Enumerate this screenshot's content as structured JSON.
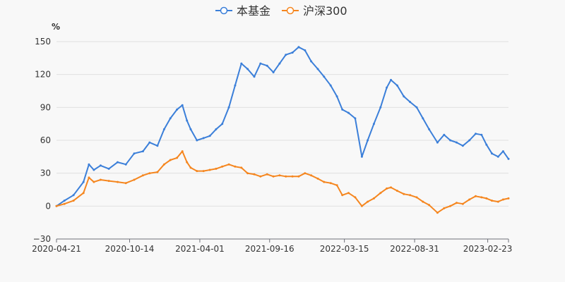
{
  "chart_data": {
    "type": "line",
    "title": "",
    "ylabel": "%",
    "xlabel": "",
    "ylim": [
      -30,
      150
    ],
    "yticks": [
      150,
      120,
      90,
      60,
      30,
      0,
      -30
    ],
    "yticks_labels": [
      "150",
      "120",
      "90",
      "60",
      "30",
      "0",
      "−30"
    ],
    "xlim": [
      "2020-04-21",
      "2023-04-14"
    ],
    "xticks": [
      "2020-04-21",
      "2020-10-14",
      "2021-04-01",
      "2021-09-16",
      "2022-03-15",
      "2022-08-31",
      "2023-02-23"
    ],
    "grid": "horizontal",
    "legend_position": "top-center",
    "series": [
      {
        "name": "本基金",
        "color": "#3b7fd9",
        "points": [
          [
            "2020-04-21",
            0
          ],
          [
            "2020-05-10",
            5
          ],
          [
            "2020-06-01",
            10
          ],
          [
            "2020-06-25",
            22
          ],
          [
            "2020-07-08",
            38
          ],
          [
            "2020-07-20",
            33
          ],
          [
            "2020-08-05",
            37
          ],
          [
            "2020-08-25",
            34
          ],
          [
            "2020-09-15",
            40
          ],
          [
            "2020-10-05",
            38
          ],
          [
            "2020-10-25",
            48
          ],
          [
            "2020-11-15",
            50
          ],
          [
            "2020-12-01",
            58
          ],
          [
            "2020-12-20",
            55
          ],
          [
            "2021-01-05",
            70
          ],
          [
            "2021-01-20",
            80
          ],
          [
            "2021-02-05",
            88
          ],
          [
            "2021-02-18",
            92
          ],
          [
            "2021-03-01",
            78
          ],
          [
            "2021-03-10",
            70
          ],
          [
            "2021-03-25",
            60
          ],
          [
            "2021-04-10",
            62
          ],
          [
            "2021-04-25",
            64
          ],
          [
            "2021-05-10",
            70
          ],
          [
            "2021-05-25",
            75
          ],
          [
            "2021-06-10",
            90
          ],
          [
            "2021-06-25",
            110
          ],
          [
            "2021-07-10",
            130
          ],
          [
            "2021-07-25",
            125
          ],
          [
            "2021-08-10",
            118
          ],
          [
            "2021-08-25",
            130
          ],
          [
            "2021-09-10",
            128
          ],
          [
            "2021-09-25",
            122
          ],
          [
            "2021-10-10",
            130
          ],
          [
            "2021-10-25",
            138
          ],
          [
            "2021-11-10",
            140
          ],
          [
            "2021-11-25",
            145
          ],
          [
            "2021-12-10",
            142
          ],
          [
            "2021-12-25",
            132
          ],
          [
            "2022-01-10",
            125
          ],
          [
            "2022-01-25",
            118
          ],
          [
            "2022-02-10",
            110
          ],
          [
            "2022-02-25",
            100
          ],
          [
            "2022-03-10",
            88
          ],
          [
            "2022-03-25",
            85
          ],
          [
            "2022-04-10",
            80
          ],
          [
            "2022-04-26",
            45
          ],
          [
            "2022-05-10",
            60
          ],
          [
            "2022-05-25",
            75
          ],
          [
            "2022-06-10",
            90
          ],
          [
            "2022-06-25",
            108
          ],
          [
            "2022-07-05",
            115
          ],
          [
            "2022-07-20",
            110
          ],
          [
            "2022-08-05",
            100
          ],
          [
            "2022-08-20",
            95
          ],
          [
            "2022-09-05",
            90
          ],
          [
            "2022-09-20",
            80
          ],
          [
            "2022-10-05",
            70
          ],
          [
            "2022-10-25",
            58
          ],
          [
            "2022-11-10",
            65
          ],
          [
            "2022-11-25",
            60
          ],
          [
            "2022-12-10",
            58
          ],
          [
            "2022-12-25",
            55
          ],
          [
            "2023-01-10",
            60
          ],
          [
            "2023-01-25",
            66
          ],
          [
            "2023-02-08",
            65
          ],
          [
            "2023-02-20",
            56
          ],
          [
            "2023-03-05",
            48
          ],
          [
            "2023-03-20",
            45
          ],
          [
            "2023-04-01",
            50
          ],
          [
            "2023-04-14",
            43
          ]
        ]
      },
      {
        "name": "沪深300",
        "color": "#f5861f",
        "points": [
          [
            "2020-04-21",
            0
          ],
          [
            "2020-05-10",
            2
          ],
          [
            "2020-06-01",
            5
          ],
          [
            "2020-06-25",
            12
          ],
          [
            "2020-07-08",
            26
          ],
          [
            "2020-07-20",
            22
          ],
          [
            "2020-08-05",
            24
          ],
          [
            "2020-08-25",
            23
          ],
          [
            "2020-09-15",
            22
          ],
          [
            "2020-10-05",
            21
          ],
          [
            "2020-10-25",
            24
          ],
          [
            "2020-11-15",
            28
          ],
          [
            "2020-12-01",
            30
          ],
          [
            "2020-12-20",
            31
          ],
          [
            "2021-01-05",
            38
          ],
          [
            "2021-01-20",
            42
          ],
          [
            "2021-02-05",
            44
          ],
          [
            "2021-02-18",
            50
          ],
          [
            "2021-03-01",
            40
          ],
          [
            "2021-03-10",
            35
          ],
          [
            "2021-03-25",
            32
          ],
          [
            "2021-04-10",
            32
          ],
          [
            "2021-04-25",
            33
          ],
          [
            "2021-05-10",
            34
          ],
          [
            "2021-05-25",
            36
          ],
          [
            "2021-06-10",
            38
          ],
          [
            "2021-06-25",
            36
          ],
          [
            "2021-07-10",
            35
          ],
          [
            "2021-07-25",
            30
          ],
          [
            "2021-08-10",
            29
          ],
          [
            "2021-08-25",
            27
          ],
          [
            "2021-09-10",
            29
          ],
          [
            "2021-09-25",
            27
          ],
          [
            "2021-10-10",
            28
          ],
          [
            "2021-10-25",
            27
          ],
          [
            "2021-11-10",
            27
          ],
          [
            "2021-11-25",
            27
          ],
          [
            "2021-12-10",
            30
          ],
          [
            "2021-12-25",
            28
          ],
          [
            "2022-01-10",
            25
          ],
          [
            "2022-01-25",
            22
          ],
          [
            "2022-02-10",
            21
          ],
          [
            "2022-02-25",
            19
          ],
          [
            "2022-03-10",
            10
          ],
          [
            "2022-03-25",
            12
          ],
          [
            "2022-04-10",
            8
          ],
          [
            "2022-04-26",
            0
          ],
          [
            "2022-05-10",
            4
          ],
          [
            "2022-05-25",
            7
          ],
          [
            "2022-06-10",
            12
          ],
          [
            "2022-06-25",
            16
          ],
          [
            "2022-07-05",
            17
          ],
          [
            "2022-07-20",
            14
          ],
          [
            "2022-08-05",
            11
          ],
          [
            "2022-08-20",
            10
          ],
          [
            "2022-09-05",
            8
          ],
          [
            "2022-09-20",
            4
          ],
          [
            "2022-10-05",
            1
          ],
          [
            "2022-10-25",
            -6
          ],
          [
            "2022-11-10",
            -2
          ],
          [
            "2022-11-25",
            0
          ],
          [
            "2022-12-10",
            3
          ],
          [
            "2022-12-25",
            2
          ],
          [
            "2023-01-10",
            6
          ],
          [
            "2023-01-25",
            9
          ],
          [
            "2023-02-08",
            8
          ],
          [
            "2023-02-20",
            7
          ],
          [
            "2023-03-05",
            5
          ],
          [
            "2023-03-20",
            4
          ],
          [
            "2023-04-01",
            6
          ],
          [
            "2023-04-14",
            7
          ]
        ]
      }
    ]
  }
}
